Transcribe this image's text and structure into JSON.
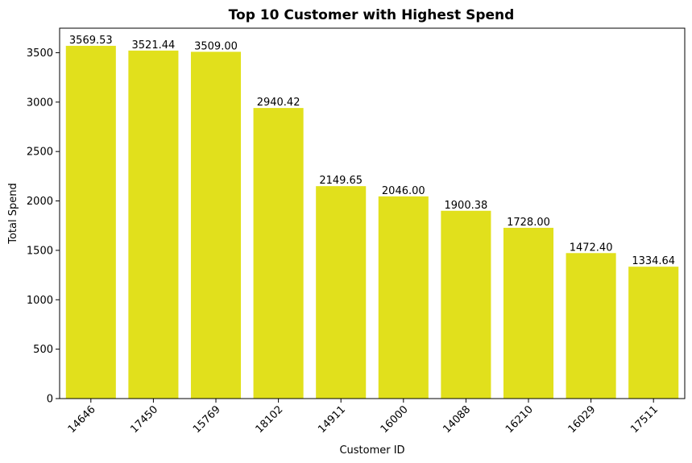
{
  "chart_data": {
    "type": "bar",
    "title": "Top 10 Customer with Highest Spend",
    "xlabel": "Customer ID",
    "ylabel": "Total Spend",
    "categories": [
      "14646",
      "17450",
      "15769",
      "18102",
      "14911",
      "16000",
      "14088",
      "16210",
      "16029",
      "17511"
    ],
    "values": [
      3569.53,
      3521.44,
      3509.0,
      2940.42,
      2149.65,
      2046.0,
      1900.38,
      1728.0,
      1472.4,
      1334.64
    ],
    "data_labels": [
      "3569.53",
      "3521.44",
      "3509.00",
      "2940.42",
      "2149.65",
      "2046.00",
      "1900.38",
      "1728.00",
      "1472.40",
      "1334.64"
    ],
    "y_ticks": [
      0,
      500,
      1000,
      1500,
      2000,
      2500,
      3000,
      3500
    ],
    "ylim": [
      0,
      3748
    ],
    "grid": false,
    "legend": "none",
    "x_tick_rotation": 45,
    "bar_color": "#e1e01c"
  }
}
